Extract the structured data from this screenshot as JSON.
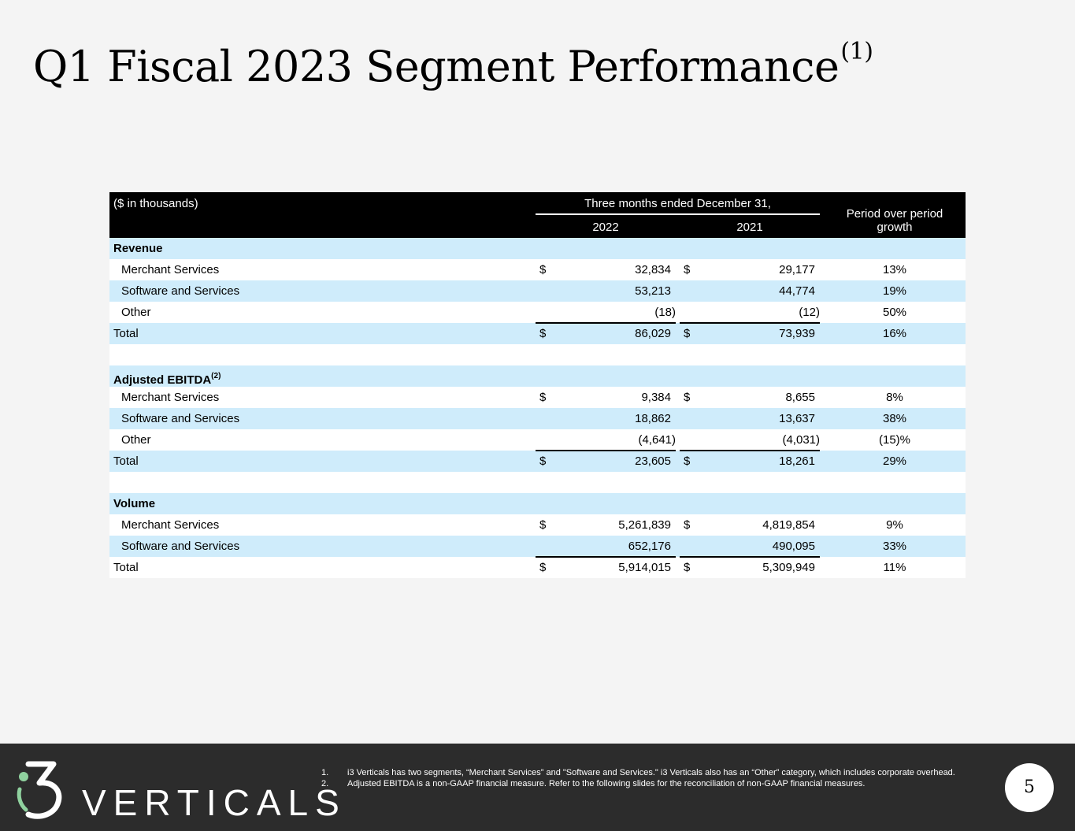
{
  "title": {
    "text": "Q1 Fiscal 2023 Segment Performance",
    "superscript": "(1)"
  },
  "table": {
    "unit_label": "($ in thousands)",
    "period_header": "Three months ended December 31,",
    "years": [
      "2022",
      "2021"
    ],
    "growth_header_line1": "Period over period",
    "growth_header_line2": "growth",
    "sections": [
      {
        "heading": "Revenue",
        "heading_sup": "",
        "rows": [
          {
            "label": "Merchant Services",
            "dollar1": "$",
            "v2022": "32,834",
            "dollar2": "$",
            "v2021": "29,177",
            "growth": "13%"
          },
          {
            "label": "Software and Services",
            "dollar1": "",
            "v2022": "53,213",
            "dollar2": "",
            "v2021": "44,774",
            "growth": "19%"
          },
          {
            "label": "Other",
            "dollar1": "",
            "v2022": "(18)",
            "dollar2": "",
            "v2021": "(12)",
            "growth": "50%"
          }
        ],
        "total": {
          "label": "Total",
          "dollar1": "$",
          "v2022": "86,029",
          "dollar2": "$",
          "v2021": "73,939",
          "growth": "16%"
        }
      },
      {
        "heading": "Adjusted EBITDA",
        "heading_sup": "(2)",
        "rows": [
          {
            "label": "Merchant Services",
            "dollar1": "$",
            "v2022": "9,384",
            "dollar2": "$",
            "v2021": "8,655",
            "growth": "8%"
          },
          {
            "label": "Software and Services",
            "dollar1": "",
            "v2022": "18,862",
            "dollar2": "",
            "v2021": "13,637",
            "growth": "38%"
          },
          {
            "label": "Other",
            "dollar1": "",
            "v2022": "(4,641)",
            "dollar2": "",
            "v2021": "(4,031)",
            "growth": "(15)%"
          }
        ],
        "total": {
          "label": "Total",
          "dollar1": "$",
          "v2022": "23,605",
          "dollar2": "$",
          "v2021": "18,261",
          "growth": "29%"
        }
      },
      {
        "heading": "Volume",
        "heading_sup": "",
        "rows": [
          {
            "label": "Merchant Services",
            "dollar1": "$",
            "v2022": "5,261,839",
            "dollar2": "$",
            "v2021": "4,819,854",
            "growth": "9%"
          },
          {
            "label": "Software and Services",
            "dollar1": "",
            "v2022": "652,176",
            "dollar2": "",
            "v2021": "490,095",
            "growth": "33%"
          }
        ],
        "total": {
          "label": "Total",
          "dollar1": "$",
          "v2022": "5,914,015",
          "dollar2": "$",
          "v2021": "5,309,949",
          "growth": "11%"
        }
      }
    ]
  },
  "footer": {
    "logo_text": "VERTICALS",
    "logo_icon": "i3-logo-icon",
    "colors": {
      "background": "#2c2c2c",
      "accent_green": "#8fd19e",
      "row_blue": "#cfecfb"
    },
    "notes": [
      {
        "num": "1.",
        "text": "i3 Verticals has two segments, “Merchant Services” and \"Software and Services.\" i3 Verticals also has an “Other” category, which includes corporate overhead."
      },
      {
        "num": "2.",
        "text": "Adjusted EBITDA is a non-GAAP financial measure. Refer to the following slides for the reconciliation of non-GAAP financial measures."
      }
    ],
    "page_number": "5"
  }
}
